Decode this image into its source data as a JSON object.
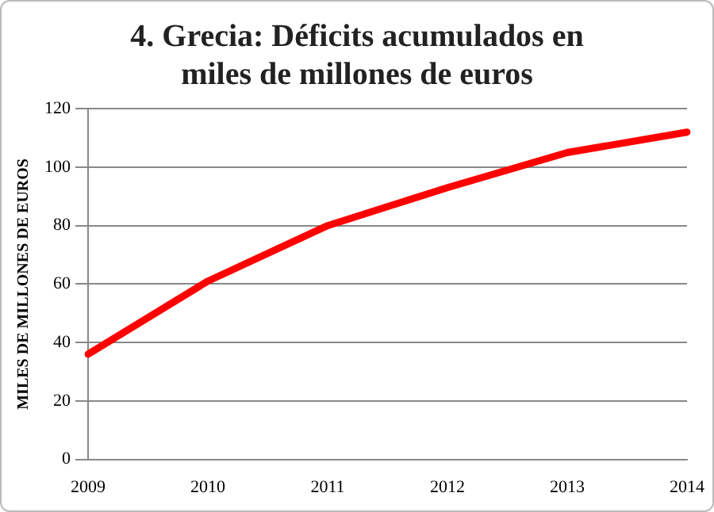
{
  "chart_data": {
    "type": "line",
    "title": "4. Grecia: Déficits acumulados en miles de millones de euros",
    "ylabel": "MILES DE MILLONES DE EUROS",
    "categories": [
      "2009",
      "2010",
      "2011",
      "2012",
      "2013",
      "2014"
    ],
    "series": [
      {
        "color": "#ff0000",
        "values": [
          36,
          61,
          80,
          93,
          105,
          112
        ]
      }
    ],
    "ylim": [
      0,
      120
    ],
    "yticks": [
      0,
      20,
      40,
      60,
      80,
      100,
      120
    ],
    "grid": "y",
    "legend": false,
    "marker": "none",
    "line_style": "solid"
  }
}
